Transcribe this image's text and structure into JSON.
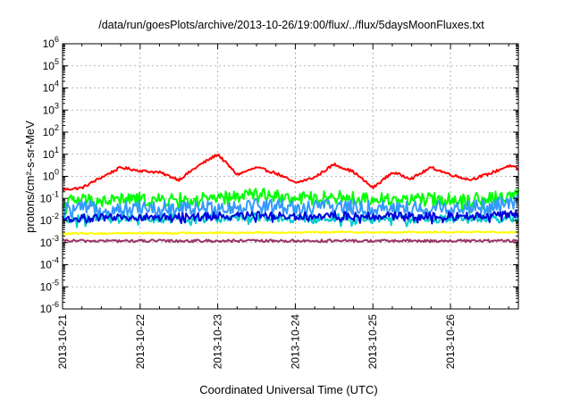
{
  "chart_data": {
    "type": "line",
    "title": "/data/run/goesPlots/archive/2013-10-26/19:00/flux/../flux/5daysMoonFluxes.txt",
    "xlabel": "Coordinated Universal Time (UTC)",
    "ylabel": "protons/cm²-s-sr-MeV",
    "yscale": "log",
    "ylim": [
      1e-06,
      1000000.0
    ],
    "xlim": [
      "2013-10-21T00:00",
      "2013-10-26T21:00"
    ],
    "grid": true,
    "x_ticks": [
      "2013-10-21",
      "2013-10-22",
      "2013-10-23",
      "2013-10-24",
      "2013-10-25",
      "2013-10-26"
    ],
    "y_ticks": [
      {
        "value": 1e-06,
        "base": "10",
        "exp": "-6"
      },
      {
        "value": 1e-05,
        "base": "10",
        "exp": "-5"
      },
      {
        "value": 0.0001,
        "base": "10",
        "exp": "-4"
      },
      {
        "value": 0.001,
        "base": "10",
        "exp": "-3"
      },
      {
        "value": 0.01,
        "base": "10",
        "exp": "-2"
      },
      {
        "value": 0.1,
        "base": "10",
        "exp": "-1"
      },
      {
        "value": 1,
        "base": "10",
        "exp": "0"
      },
      {
        "value": 10,
        "base": "10",
        "exp": "1"
      },
      {
        "value": 100,
        "base": "10",
        "exp": "2"
      },
      {
        "value": 1000,
        "base": "10",
        "exp": "3"
      },
      {
        "value": 10000,
        "base": "10",
        "exp": "4"
      },
      {
        "value": 100000,
        "base": "10",
        "exp": "5"
      },
      {
        "value": 1000000,
        "base": "10",
        "exp": "6"
      }
    ],
    "x_days": [
      0,
      0.25,
      0.5,
      0.75,
      1,
      1.25,
      1.5,
      1.75,
      2,
      2.25,
      2.5,
      2.75,
      3,
      3.25,
      3.5,
      3.75,
      4,
      4.25,
      4.5,
      4.75,
      5,
      5.25,
      5.5,
      5.75,
      5.875
    ],
    "series": [
      {
        "color": "#ff0000",
        "noise": 0.06,
        "values": [
          0.25,
          0.3,
          0.9,
          2.5,
          1.8,
          1.5,
          0.7,
          3,
          10,
          1.2,
          2.5,
          1.4,
          0.5,
          0.9,
          3.5,
          1.6,
          0.3,
          1.5,
          0.8,
          2.5,
          1.2,
          0.7,
          1.3,
          3,
          2.2
        ]
      },
      {
        "color": "#00ff00",
        "noise": 0.3,
        "values": [
          0.07,
          0.09,
          0.08,
          0.09,
          0.09,
          0.08,
          0.09,
          0.09,
          0.1,
          0.12,
          0.18,
          0.12,
          0.1,
          0.1,
          0.12,
          0.1,
          0.09,
          0.1,
          0.09,
          0.09,
          0.09,
          0.09,
          0.1,
          0.12,
          0.2
        ]
      },
      {
        "color": "#3399ff",
        "noise": 0.35,
        "values": [
          0.03,
          0.035,
          0.035,
          0.035,
          0.04,
          0.035,
          0.035,
          0.035,
          0.04,
          0.045,
          0.05,
          0.045,
          0.04,
          0.04,
          0.045,
          0.04,
          0.035,
          0.04,
          0.035,
          0.035,
          0.04,
          0.04,
          0.045,
          0.06,
          0.08
        ]
      },
      {
        "color": "#00cccc",
        "noise": 0.2,
        "values": [
          0.01,
          0.012,
          0.012,
          0.012,
          0.013,
          0.012,
          0.012,
          0.012,
          0.013,
          0.013,
          0.014,
          0.013,
          0.012,
          0.012,
          0.013,
          0.012,
          0.012,
          0.012,
          0.012,
          0.012,
          0.012,
          0.012,
          0.012,
          0.012,
          0.012
        ]
      },
      {
        "color": "#0000dd",
        "noise": 0.18,
        "values": [
          0.012,
          0.013,
          0.013,
          0.013,
          0.014,
          0.014,
          0.015,
          0.015,
          0.016,
          0.016,
          0.018,
          0.017,
          0.016,
          0.016,
          0.017,
          0.016,
          0.016,
          0.016,
          0.016,
          0.016,
          0.016,
          0.016,
          0.017,
          0.018,
          0.02
        ]
      },
      {
        "color": "#ffff00",
        "noise": 0.04,
        "values": [
          0.0025,
          0.0026,
          0.0026,
          0.0027,
          0.0027,
          0.0027,
          0.0027,
          0.0028,
          0.0028,
          0.0028,
          0.0029,
          0.0029,
          0.0029,
          0.0029,
          0.003,
          0.003,
          0.0029,
          0.0029,
          0.003,
          0.003,
          0.003,
          0.003,
          0.003,
          0.003,
          0.003
        ]
      },
      {
        "color": "#993366",
        "noise": 0.06,
        "values": [
          0.0012,
          0.0012,
          0.0012,
          0.0012,
          0.0012,
          0.0012,
          0.0012,
          0.0012,
          0.0012,
          0.0012,
          0.0012,
          0.0012,
          0.0012,
          0.0012,
          0.0012,
          0.0012,
          0.0012,
          0.0012,
          0.0012,
          0.0012,
          0.0012,
          0.0012,
          0.0012,
          0.0012,
          0.0012
        ]
      }
    ]
  }
}
